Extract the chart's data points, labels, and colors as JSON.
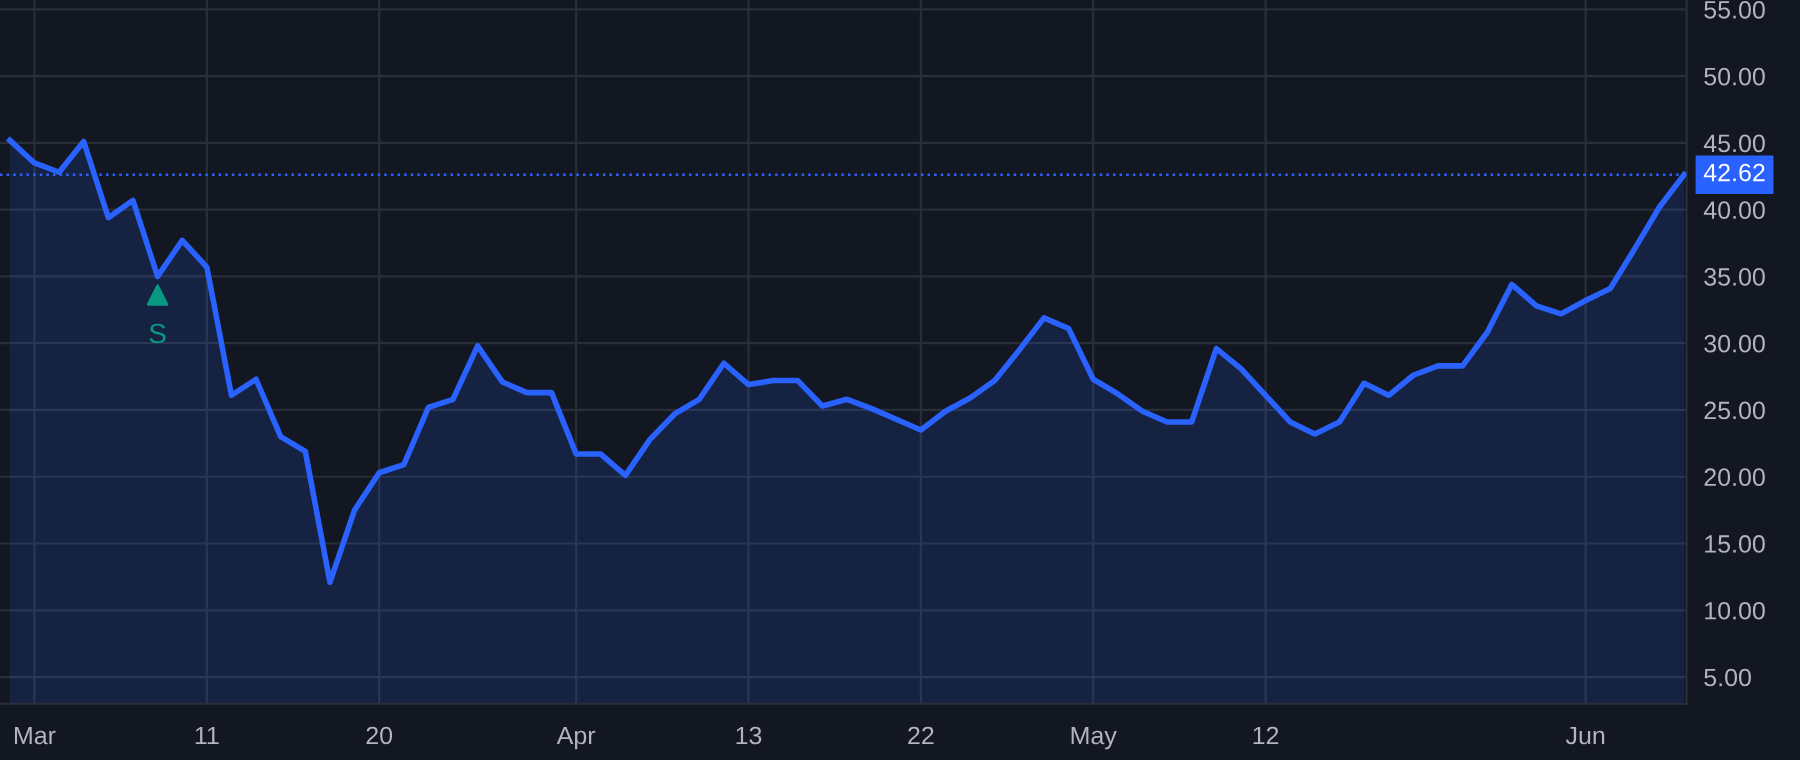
{
  "chart_data": {
    "type": "area",
    "categories": [
      null,
      "Mar",
      null,
      null,
      null,
      null,
      null,
      null,
      "11",
      null,
      null,
      null,
      null,
      null,
      null,
      "20",
      null,
      null,
      null,
      null,
      null,
      null,
      null,
      "Apr",
      null,
      null,
      null,
      null,
      null,
      null,
      "13",
      null,
      null,
      null,
      null,
      null,
      null,
      "22",
      null,
      null,
      null,
      null,
      null,
      null,
      "May",
      null,
      null,
      null,
      null,
      null,
      null,
      "12",
      null,
      null,
      null,
      null,
      null,
      null,
      null,
      null,
      null,
      null,
      null,
      null,
      "Jun",
      null,
      null,
      null,
      null
    ],
    "series": [
      {
        "color": "#2962ff",
        "values": [
          45.2,
          43.5,
          42.8,
          45.1,
          39.4,
          40.7,
          35.0,
          37.7,
          35.7,
          26.1,
          27.3,
          23.0,
          21.9,
          12.1,
          17.5,
          20.3,
          20.9,
          25.2,
          25.8,
          29.8,
          27.1,
          26.3,
          26.3,
          21.7,
          21.7,
          20.1,
          22.8,
          24.7,
          25.8,
          28.5,
          26.9,
          27.2,
          27.2,
          25.3,
          25.8,
          25.1,
          24.3,
          23.5,
          24.9,
          25.9,
          27.2,
          29.5,
          31.9,
          31.1,
          27.3,
          26.2,
          24.9,
          24.1,
          24.1,
          29.6,
          28.1,
          26.1,
          24.1,
          23.2,
          24.1,
          27.0,
          26.1,
          27.6,
          28.3,
          28.3,
          30.8,
          34.4,
          32.8,
          32.2,
          33.2,
          34.1,
          37.1,
          40.2,
          42.62
        ]
      },
      {
        "type": "scatter",
        "name": "S",
        "color": "#089981",
        "marker": "triangle",
        "values": [
          null,
          null,
          null,
          null,
          null,
          null,
          33.6,
          null,
          null,
          null,
          null,
          null,
          null,
          null,
          null,
          null,
          null,
          null,
          null,
          null,
          null,
          null,
          null,
          null,
          null,
          null,
          null,
          null,
          null,
          null,
          null,
          null,
          null,
          null,
          null,
          null,
          null,
          null,
          null,
          null,
          null,
          null,
          null,
          null,
          null,
          null,
          null,
          null,
          null,
          null,
          null,
          null,
          null,
          null,
          null,
          null,
          null,
          null,
          null,
          null,
          null,
          null,
          null,
          null,
          null,
          null,
          null,
          null,
          null
        ]
      }
    ],
    "ylim": [
      3.0,
      55.7
    ],
    "yticks": [
      {
        "value": 5,
        "label": "5.00"
      },
      {
        "value": 10,
        "label": "10.00"
      },
      {
        "value": 15,
        "label": "15.00"
      },
      {
        "value": 20,
        "label": "20.00"
      },
      {
        "value": 25,
        "label": "25.00"
      },
      {
        "value": 30,
        "label": "30.00"
      },
      {
        "value": 35,
        "label": "35.00"
      },
      {
        "value": 40,
        "label": "40.00"
      },
      {
        "value": 45,
        "label": "45.00"
      },
      {
        "value": 50,
        "label": "50.00"
      },
      {
        "value": 55,
        "label": "55.00"
      }
    ],
    "ref_lines": [
      {
        "axis": "y",
        "value": 42.62,
        "label": "42.62",
        "color": "#2962ff",
        "line_style": "dotted"
      }
    ],
    "grid": true,
    "legend": false
  }
}
